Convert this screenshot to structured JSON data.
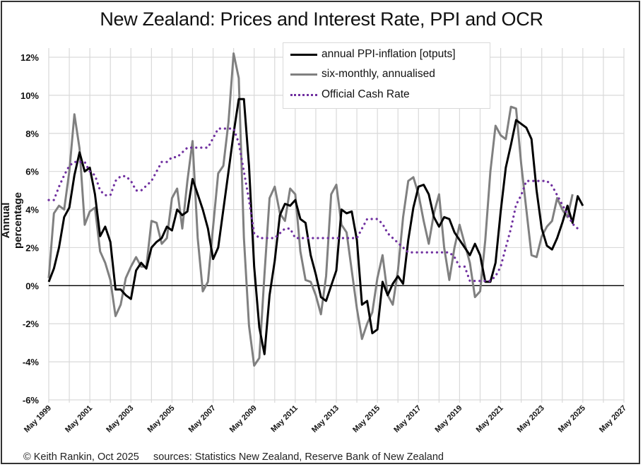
{
  "chart_data": {
    "type": "line",
    "title": "New Zealand: Prices and Interest Rate, PPI and OCR",
    "xlabel": "",
    "ylabel": "Annual percentage",
    "ylim": [
      -6,
      12
    ],
    "yticks": [
      "12%",
      "10%",
      "8%",
      "6%",
      "4%",
      "2%",
      "0%",
      "-2%",
      "-4%",
      "-6%"
    ],
    "ytick_values": [
      12,
      10,
      8,
      6,
      4,
      2,
      0,
      -2,
      -4,
      -6
    ],
    "xlim_years": [
      1999.37,
      2027.37
    ],
    "xticks": [
      "May 1999",
      "May 2001",
      "May 2003",
      "May 2005",
      "May 2007",
      "May 2009",
      "May 2011",
      "May 2013",
      "May 2015",
      "May 2017",
      "May 2019",
      "May 2021",
      "May 2023",
      "May 2025",
      "May 2027"
    ],
    "grid": true,
    "legend_position": "top-center",
    "x_start": "May 1999",
    "x_step": "quarterly",
    "series": [
      {
        "name": "annual PPI-inflation [otputs]",
        "color": "#000000",
        "style": "solid",
        "values": [
          0.2,
          0.9,
          2.0,
          3.6,
          4.1,
          5.8,
          7.0,
          6.0,
          6.2,
          4.8,
          2.6,
          3.1,
          2.3,
          -0.2,
          -0.2,
          -0.5,
          -0.7,
          0.8,
          1.2,
          0.9,
          2.0,
          2.3,
          2.5,
          3.1,
          2.9,
          4.0,
          3.7,
          3.9,
          5.6,
          4.8,
          4.0,
          3.0,
          1.4,
          2.0,
          4.0,
          6.0,
          8.0,
          9.8,
          9.8,
          6.3,
          1.0,
          -2.2,
          -3.6,
          -0.5,
          1.3,
          3.7,
          4.3,
          4.2,
          4.5,
          3.5,
          3.3,
          1.6,
          0.6,
          -0.6,
          -0.8,
          0.0,
          0.8,
          4.0,
          3.8,
          3.9,
          2.4,
          -1.0,
          -0.8,
          -2.5,
          -2.3,
          0.2,
          -0.5,
          0.1,
          0.5,
          0.1,
          2.4,
          4.1,
          5.2,
          5.3,
          4.8,
          3.6,
          3.1,
          3.6,
          3.5,
          2.8,
          2.4,
          2.0,
          1.6,
          2.2,
          1.6,
          0.2,
          0.2,
          1.2,
          3.9,
          6.2,
          7.4,
          8.7,
          8.5,
          8.3,
          7.7,
          5.0,
          3.0,
          2.1,
          1.9,
          2.5,
          3.3,
          4.2,
          3.3,
          4.7,
          4.2
        ]
      },
      {
        "name": "six-monthly, annualised",
        "color": "#808080",
        "style": "solid",
        "values": [
          0.4,
          3.8,
          4.2,
          4.0,
          6.0,
          9.0,
          7.2,
          3.2,
          3.9,
          4.1,
          1.8,
          1.2,
          0.3,
          -1.6,
          -1.0,
          0.4,
          1.0,
          1.5,
          1.0,
          1.0,
          3.4,
          3.3,
          2.2,
          2.5,
          4.6,
          5.1,
          3.0,
          5.5,
          7.6,
          2.5,
          -0.3,
          0.2,
          3.1,
          5.9,
          6.3,
          8.6,
          12.2,
          10.9,
          2.5,
          -2.1,
          -4.2,
          -3.8,
          0.6,
          4.6,
          5.2,
          3.8,
          3.4,
          5.1,
          4.8,
          1.8,
          0.3,
          0.2,
          -0.5,
          -1.5,
          0.5,
          4.8,
          5.3,
          3.2,
          2.8,
          0.8,
          -1.2,
          -2.8,
          -2.0,
          -1.4,
          0.4,
          1.6,
          -0.5,
          -1.0,
          0.8,
          3.6,
          5.5,
          5.7,
          4.8,
          3.4,
          2.2,
          3.8,
          4.8,
          2.0,
          0.3,
          2.0,
          3.2,
          2.2,
          1.2,
          -0.6,
          -0.3,
          2.4,
          6.0,
          8.4,
          7.9,
          7.7,
          9.4,
          9.3,
          6.4,
          4.0,
          1.6,
          1.5,
          2.6,
          3.1,
          3.4,
          4.6,
          4.0,
          3.6,
          4.8
        ]
      },
      {
        "name": "Official Cash Rate",
        "color": "#7030A0",
        "style": "dotted",
        "values": [
          4.5,
          4.5,
          5.2,
          5.8,
          6.3,
          6.5,
          6.5,
          6.5,
          6.0,
          5.8,
          5.0,
          4.75,
          4.75,
          5.5,
          5.75,
          5.75,
          5.5,
          5.0,
          5.0,
          5.25,
          5.5,
          6.0,
          6.5,
          6.5,
          6.75,
          6.75,
          7.0,
          7.25,
          7.25,
          7.25,
          7.25,
          7.25,
          7.75,
          8.25,
          8.25,
          8.25,
          8.25,
          7.5,
          6.0,
          4.5,
          2.75,
          2.5,
          2.5,
          2.5,
          2.5,
          2.75,
          3.0,
          3.0,
          2.5,
          2.5,
          2.5,
          2.5,
          2.5,
          2.5,
          2.5,
          2.5,
          2.5,
          2.5,
          2.5,
          2.5,
          2.5,
          3.0,
          3.5,
          3.5,
          3.5,
          3.25,
          2.75,
          2.5,
          2.25,
          2.0,
          1.75,
          1.75,
          1.75,
          1.75,
          1.75,
          1.75,
          1.75,
          1.75,
          1.75,
          1.5,
          1.0,
          1.0,
          0.25,
          0.25,
          0.25,
          0.25,
          0.25,
          0.5,
          1.0,
          2.0,
          3.0,
          4.25,
          4.75,
          5.5,
          5.5,
          5.5,
          5.5,
          5.5,
          5.25,
          4.75,
          4.25,
          3.75,
          3.25,
          3.0
        ]
      }
    ]
  },
  "footer": {
    "text": "© Keith Rankin, Oct 2025     sources: Statistics New Zealand, Reserve Bank of New Zealand"
  }
}
